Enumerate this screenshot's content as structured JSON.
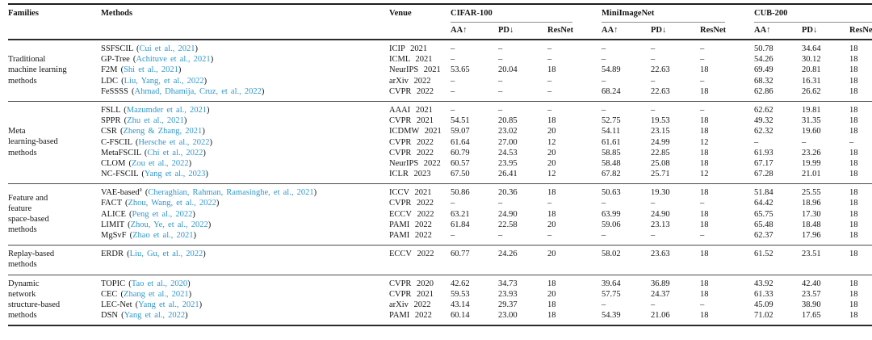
{
  "table": {
    "headers": {
      "families": "Families",
      "methods": "Methods",
      "venue": "Venue",
      "dataset_groups": [
        "CIFAR-100",
        "MiniImageNet",
        "CUB-200"
      ],
      "subcolumns": [
        "AA↑",
        "PD↓",
        "ResNet"
      ]
    },
    "link_color": "#3097c9",
    "missing_marker": "–",
    "groups": [
      {
        "family_lines": [
          "Traditional",
          "machine learning",
          "methods"
        ],
        "rows": [
          {
            "method": "SSFSCIL",
            "sup": "",
            "cite": "Cui et al., 2021",
            "venue": "ICIP 2021",
            "values": [
              "–",
              "–",
              "–",
              "–",
              "–",
              "–",
              "50.78",
              "34.64",
              "18"
            ]
          },
          {
            "method": "GP-Tree",
            "sup": "",
            "cite": "Achituve et al., 2021",
            "venue": "ICML 2021",
            "values": [
              "–",
              "–",
              "–",
              "–",
              "–",
              "–",
              "54.26",
              "30.12",
              "18"
            ]
          },
          {
            "method": "F2M",
            "sup": "",
            "cite": "Shi et al., 2021",
            "venue": "NeurIPS 2021",
            "values": [
              "53.65",
              "20.04",
              "18",
              "54.89",
              "22.63",
              "18",
              "69.49",
              "20.81",
              "18"
            ]
          },
          {
            "method": "LDC",
            "sup": "",
            "cite": "Liu, Yang, et al., 2022",
            "venue": "arXiv 2022",
            "values": [
              "–",
              "–",
              "–",
              "–",
              "–",
              "–",
              "68.32",
              "16.31",
              "18"
            ]
          },
          {
            "method": "FeSSSS",
            "sup": "",
            "cite": "Ahmad, Dhamija, Cruz, et al., 2022",
            "venue": "CVPR 2022",
            "values": [
              "–",
              "–",
              "–",
              "68.24",
              "22.63",
              "18",
              "62.86",
              "26.62",
              "18"
            ]
          }
        ]
      },
      {
        "family_lines": [
          "Meta",
          "learning-based",
          "methods"
        ],
        "rows": [
          {
            "method": "FSLL",
            "sup": "",
            "cite": "Mazumder et al., 2021",
            "venue": "AAAI 2021",
            "values": [
              "–",
              "–",
              "–",
              "–",
              "–",
              "–",
              "62.62",
              "19.81",
              "18"
            ]
          },
          {
            "method": "SPPR",
            "sup": "",
            "cite": "Zhu et al., 2021",
            "venue": "CVPR 2021",
            "values": [
              "54.51",
              "20.85",
              "18",
              "52.75",
              "19.53",
              "18",
              "49.32",
              "31.35",
              "18"
            ]
          },
          {
            "method": "CSR",
            "sup": "",
            "cite": "Zheng & Zhang, 2021",
            "venue": "ICDMW 2021",
            "values": [
              "59.07",
              "23.02",
              "20",
              "54.11",
              "23.15",
              "18",
              "62.32",
              "19.60",
              "18"
            ]
          },
          {
            "method": "C-FSCIL",
            "sup": "",
            "cite": "Hersche et al., 2022",
            "venue": "CVPR 2022",
            "values": [
              "61.64",
              "27.00",
              "12",
              "61.61",
              "24.99",
              "12",
              "–",
              "–",
              "–"
            ]
          },
          {
            "method": "MetaFSCIL",
            "sup": "",
            "cite": "Chi et al., 2022",
            "venue": "CVPR 2022",
            "values": [
              "60.79",
              "24.53",
              "20",
              "58.85",
              "22.85",
              "18",
              "61.93",
              "23.26",
              "18"
            ]
          },
          {
            "method": "CLOM",
            "sup": "",
            "cite": "Zou et al., 2022",
            "venue": "NeurIPS 2022",
            "values": [
              "60.57",
              "23.95",
              "20",
              "58.48",
              "25.08",
              "18",
              "67.17",
              "19.99",
              "18"
            ]
          },
          {
            "method": "NC-FSCIL",
            "sup": "",
            "cite": "Yang et al., 2023",
            "venue": "ICLR 2023",
            "values": [
              "67.50",
              "26.41",
              "12",
              "67.82",
              "25.71",
              "12",
              "67.28",
              "21.01",
              "18"
            ]
          }
        ]
      },
      {
        "family_lines": [
          "Feature and",
          "feature",
          "space-based",
          "methods"
        ],
        "rows": [
          {
            "method": "VAE-based",
            "sup": "a",
            "cite": "Cheraghian, Rahman, Ramasinghe, et al., 2021",
            "venue": "ICCV 2021",
            "values": [
              "50.86",
              "20.36",
              "18",
              "50.63",
              "19.30",
              "18",
              "51.84",
              "25.55",
              "18"
            ]
          },
          {
            "method": "FACT",
            "sup": "",
            "cite": "Zhou, Wang, et al., 2022",
            "venue": "CVPR 2022",
            "values": [
              "–",
              "–",
              "–",
              "–",
              "–",
              "–",
              "64.42",
              "18.96",
              "18"
            ]
          },
          {
            "method": "ALICE",
            "sup": "",
            "cite": "Peng et al., 2022",
            "venue": "ECCV 2022",
            "values": [
              "63.21",
              "24.90",
              "18",
              "63.99",
              "24.90",
              "18",
              "65.75",
              "17.30",
              "18"
            ]
          },
          {
            "method": "LIMIT",
            "sup": "",
            "cite": "Zhou, Ye, et al., 2022",
            "venue": "PAMI 2022",
            "values": [
              "61.84",
              "22.58",
              "20",
              "59.06",
              "23.13",
              "18",
              "65.48",
              "18.48",
              "18"
            ]
          },
          {
            "method": "MgSvF",
            "sup": "",
            "cite": "Zhao et al., 2021",
            "venue": "PAMI 2022",
            "values": [
              "–",
              "–",
              "–",
              "–",
              "–",
              "–",
              "62.37",
              "17.96",
              "18"
            ]
          }
        ]
      },
      {
        "family_lines": [
          "Replay-based",
          "methods"
        ],
        "rows": [
          {
            "method": "ERDR",
            "sup": "",
            "cite": "Liu, Gu, et al., 2022",
            "venue": "ECCV 2022",
            "values": [
              "60.77",
              "24.26",
              "20",
              "58.02",
              "23.63",
              "18",
              "61.52",
              "23.51",
              "18"
            ]
          }
        ]
      },
      {
        "family_lines": [
          "Dynamic",
          "network",
          "structure-based",
          "methods"
        ],
        "rows": [
          {
            "method": "TOPIC",
            "sup": "",
            "cite": "Tao et al., 2020",
            "venue": "CVPR 2020",
            "values": [
              "42.62",
              "34.73",
              "18",
              "39.64",
              "36.89",
              "18",
              "43.92",
              "42.40",
              "18"
            ]
          },
          {
            "method": "CEC",
            "sup": "",
            "cite": "Zhang et al., 2021",
            "venue": "CVPR 2021",
            "values": [
              "59.53",
              "23.93",
              "20",
              "57.75",
              "24.37",
              "18",
              "61.33",
              "23.57",
              "18"
            ]
          },
          {
            "method": "LEC-Net",
            "sup": "",
            "cite": "Yang et al., 2021",
            "venue": "arXiv 2022",
            "values": [
              "43.14",
              "29.37",
              "18",
              "–",
              "–",
              "–",
              "45.09",
              "38.90",
              "18"
            ]
          },
          {
            "method": "DSN",
            "sup": "",
            "cite": "Yang et al., 2022",
            "venue": "PAMI 2022",
            "values": [
              "60.14",
              "23.00",
              "18",
              "54.39",
              "21.06",
              "18",
              "71.02",
              "17.65",
              "18"
            ]
          }
        ]
      }
    ]
  }
}
